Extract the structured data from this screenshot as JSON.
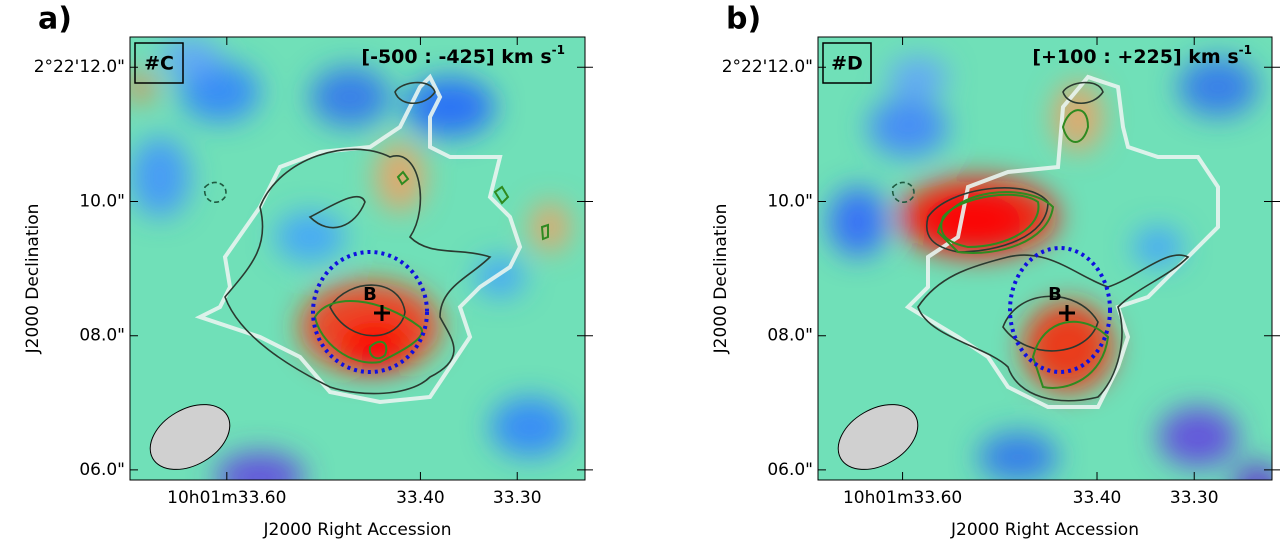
{
  "chart_data": [
    {
      "type": "map",
      "panel_label": "a)",
      "tag": "#C",
      "velocity": "[-500 : -425] km s",
      "velocity_exp": "-1",
      "source_label": "B",
      "xlabel": "J2000 Right Accession",
      "ylabel": "J2000 Declination",
      "xlim": [
        33.7,
        33.23
      ],
      "ylim": [
        5.85,
        12.45
      ],
      "xticks": [
        {
          "value": 33.6,
          "label": "10h01m33.60"
        },
        {
          "value": 33.4,
          "label": "33.40"
        },
        {
          "value": 33.3,
          "label": "33.30"
        }
      ],
      "yticks": [
        {
          "value": 12,
          "label": "2°22'12.0\""
        },
        {
          "value": 10,
          "label": "10.0\""
        },
        {
          "value": 8,
          "label": "08.0\""
        },
        {
          "value": 6,
          "label": "06.0\""
        }
      ]
    },
    {
      "type": "map",
      "panel_label": "b)",
      "tag": "#D",
      "velocity": "[+100 : +225] km s",
      "velocity_exp": "-1",
      "source_label": "B",
      "xlabel": "J2000 Right Accession",
      "ylabel": "J2000 Declination",
      "xlim": [
        33.687,
        33.22
      ],
      "ylim": [
        5.85,
        12.45
      ],
      "xticks": [
        {
          "value": 33.6,
          "label": "10h01m33.60"
        },
        {
          "value": 33.4,
          "label": "33.40"
        },
        {
          "value": 33.3,
          "label": "33.30"
        }
      ],
      "yticks": [
        {
          "value": 12,
          "label": "2°22'12.0\""
        },
        {
          "value": 10,
          "label": "10.0\""
        },
        {
          "value": 8,
          "label": "08.0\""
        },
        {
          "value": 6,
          "label": "06.0\""
        }
      ]
    }
  ]
}
